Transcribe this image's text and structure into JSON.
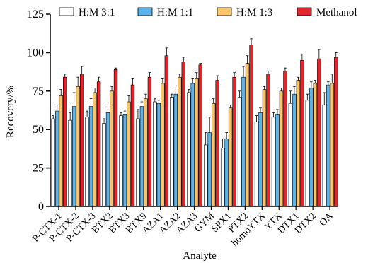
{
  "chart_data": {
    "type": "bar",
    "xlabel": "Analyte",
    "ylabel": "Recovery/%",
    "ylim": [
      0,
      125
    ],
    "yticks": [
      "0",
      "25",
      "50",
      "75",
      "100",
      "125"
    ],
    "legend_position": "top",
    "error_bars": true,
    "categories": [
      "P-CTX-1",
      "P-CTX-2",
      "P-CTX-3",
      "BTX2",
      "BTX3",
      "BTX9",
      "AZA1",
      "AZA2",
      "AZA3",
      "GYM",
      "SPX1",
      "PTX2",
      "homoYTX",
      "YTX",
      "DTX1",
      "DTX2",
      "OA"
    ],
    "series": [
      {
        "name": "H:M 3:1",
        "color": "#ffffff",
        "values": [
          57,
          56,
          58,
          54,
          59,
          57,
          68,
          71,
          74,
          40,
          38,
          71,
          55,
          58,
          67,
          69,
          66
        ],
        "errors": [
          2,
          5,
          4,
          3,
          2,
          6,
          2,
          2,
          2,
          8,
          6,
          4,
          4,
          3,
          8,
          4,
          8
        ]
      },
      {
        "name": "H:M 1:1",
        "color": "#5ab4ec",
        "values": [
          62,
          65,
          65,
          61,
          60,
          65,
          67,
          73,
          80,
          48,
          44,
          84,
          61,
          60,
          73,
          77,
          79
        ],
        "errors": [
          4,
          9,
          5,
          5,
          2,
          3,
          2,
          4,
          3,
          10,
          4,
          7,
          3,
          3,
          5,
          4,
          2
        ]
      },
      {
        "name": "H:M 1:3",
        "color": "#f9c46a",
        "values": [
          72,
          78,
          74,
          75,
          68,
          70,
          80,
          84,
          83,
          67,
          64,
          93,
          76,
          75,
          82,
          80,
          80
        ],
        "errors": [
          4,
          6,
          3,
          3,
          4,
          3,
          3,
          2,
          4,
          3,
          2,
          5,
          2,
          2,
          2,
          2,
          6
        ]
      },
      {
        "name": "Methanol",
        "color": "#e1262b",
        "values": [
          84,
          86,
          81,
          89,
          79,
          84,
          98,
          94,
          92,
          82,
          84,
          105,
          86,
          88,
          95,
          96,
          97
        ],
        "errors": [
          2,
          5,
          3,
          1,
          4,
          3,
          5,
          3,
          1,
          3,
          3,
          4,
          2,
          2,
          4,
          6,
          3
        ]
      }
    ]
  }
}
